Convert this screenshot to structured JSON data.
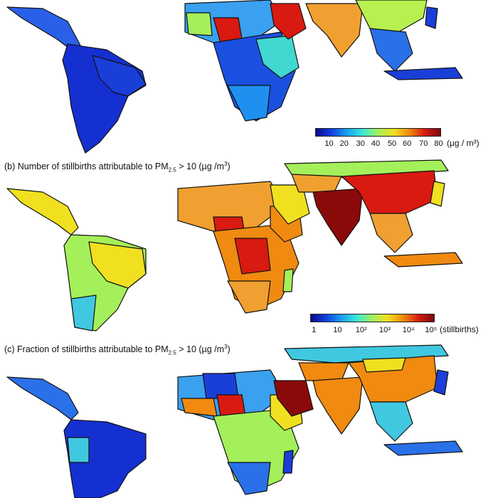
{
  "panels": {
    "a": {
      "colorbar": {
        "ticks": [
          "10",
          "20",
          "30",
          "40",
          "50",
          "60",
          "70",
          "80"
        ],
        "unit": "(µg / m³)",
        "colormap": [
          "#0a0a8c",
          "#1040e0",
          "#19a0f0",
          "#3ce8d8",
          "#a4f05a",
          "#f0e020",
          "#f08a10",
          "#d81a10",
          "#7a0a0a"
        ]
      }
    },
    "b": {
      "title_prefix": "(b) Number of stillbirths attributable to PM",
      "title_sub": "2.5",
      "title_suffix": " > 10 (µg /m",
      "title_sup": "3",
      "title_close": ")",
      "colorbar": {
        "ticks": [
          "1",
          "10",
          "10²",
          "10³",
          "10⁴",
          "10⁵"
        ],
        "unit": "(stillbirths)",
        "colormap": [
          "#0a0a8c",
          "#1040e0",
          "#19a0f0",
          "#3ce8d8",
          "#a4f05a",
          "#f0e020",
          "#f08a10",
          "#d81a10",
          "#7a0a0a"
        ]
      }
    },
    "c": {
      "title_prefix": "(c) Fraction of stillbirths attributable to PM",
      "title_sub": "2.5",
      "title_suffix": " > 10 (µg /m",
      "title_sup": "3",
      "title_close": ")"
    }
  }
}
